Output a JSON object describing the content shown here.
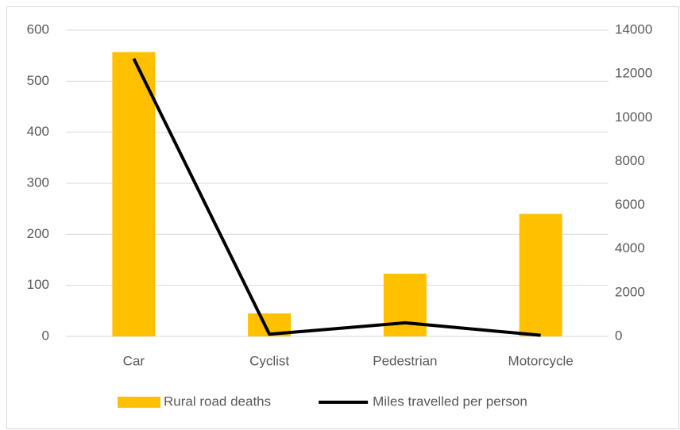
{
  "chart_data": {
    "type": "bar",
    "categories": [
      "Car",
      "Cyclist",
      "Pedestrian",
      "Motorcycle"
    ],
    "series": [
      {
        "name": "Rural road deaths",
        "type": "bar",
        "color": "#ffc000",
        "values": [
          557,
          45,
          123,
          240
        ]
      },
      {
        "name": "Miles travelled per person",
        "type": "line",
        "axis": "y2",
        "color": "#000000",
        "values": [
          12700,
          100,
          620,
          50
        ]
      }
    ],
    "ylim": [
      0,
      600
    ],
    "yticks": [
      0,
      100,
      200,
      300,
      400,
      500,
      600
    ],
    "y2lim": [
      0,
      14000
    ],
    "y2ticks": [
      0,
      2000,
      4000,
      6000,
      8000,
      10000,
      12000,
      14000
    ],
    "grid": true,
    "legend": "bottom"
  }
}
